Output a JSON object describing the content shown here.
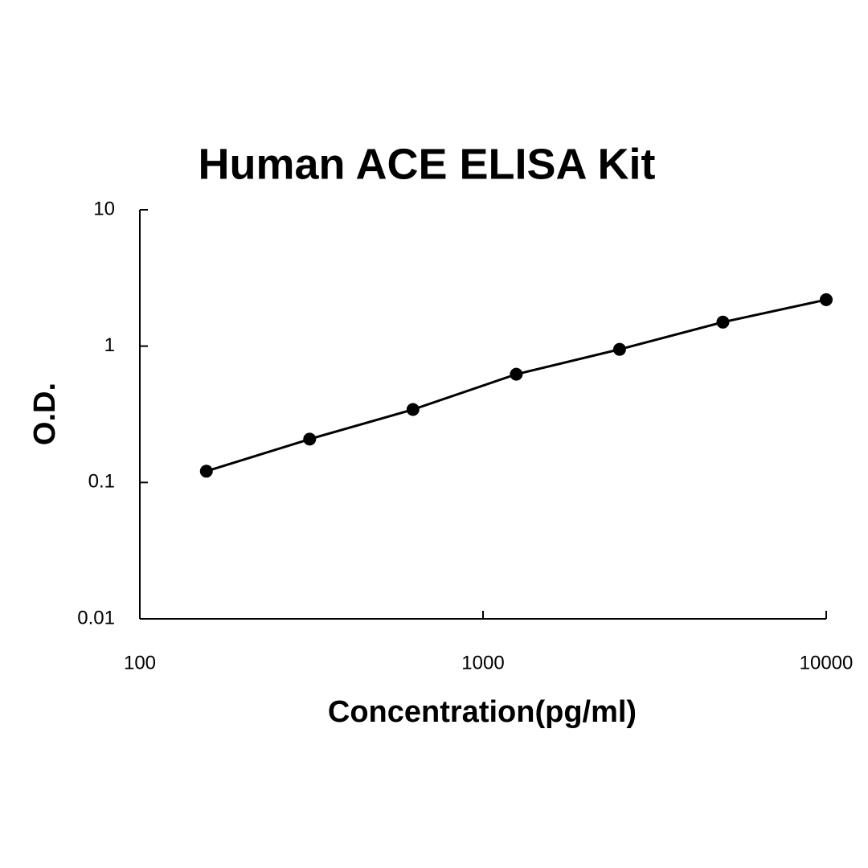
{
  "chart_data": {
    "type": "line",
    "title": "Human ACE ELISA Kit",
    "x_label": "Concentration(pg/ml)",
    "y_label": "O.D.",
    "x": [
      156.25,
      312.5,
      625,
      1250,
      2500,
      5000,
      10000
    ],
    "values": [
      0.121,
      0.208,
      0.343,
      0.622,
      0.947,
      1.5,
      2.19
    ],
    "color": "#000000",
    "markers": true,
    "xscale": "log",
    "yscale": "log",
    "xlim": [
      100,
      10000
    ],
    "ylim": [
      0.01,
      10
    ],
    "xticks": [
      100,
      1000,
      10000
    ],
    "yticks": [
      0.01,
      0.1,
      1,
      10
    ],
    "grid": false
  }
}
